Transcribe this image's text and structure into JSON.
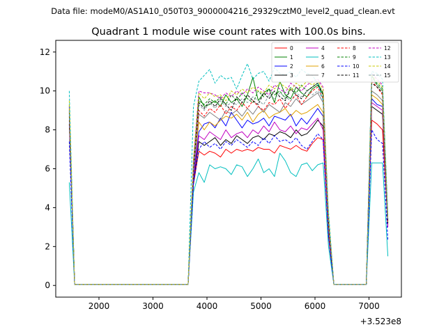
{
  "figure": {
    "suptitle": "Data file: modeM0/AS1A10_050T03_9000004216_29329cztM0_level2_quad_clean.evt"
  },
  "chart_data": {
    "type": "line",
    "title": "Quadrant 1 module wise count rates with 100.0s bins.",
    "xlabel": "",
    "ylabel": "",
    "x_offset_label": "+3.523e8",
    "xlim": [
      1200,
      7600
    ],
    "ylim": [
      -0.6,
      12.6
    ],
    "x_ticks": [
      2000,
      3000,
      4000,
      5000,
      6000,
      7000
    ],
    "y_ticks": [
      0,
      2,
      4,
      6,
      8,
      10,
      12
    ],
    "grid": false,
    "legend_placement": "top-right",
    "legend_columns": 4,
    "x": [
      1450,
      1550,
      1650,
      3650,
      3750,
      3850,
      3950,
      4050,
      4150,
      4250,
      4350,
      4450,
      4550,
      4650,
      4750,
      4850,
      4950,
      5050,
      5150,
      5250,
      5350,
      5450,
      5550,
      5650,
      5750,
      5850,
      5950,
      6050,
      6150,
      6250,
      6350,
      6950,
      7050,
      7150,
      7250,
      7350
    ],
    "series": [
      {
        "name": "0",
        "color": "#ff0000",
        "dash": "solid",
        "values": [
          9.0,
          0.05,
          0.05,
          0.05,
          5.2,
          6.9,
          6.7,
          6.9,
          6.8,
          6.6,
          7.0,
          6.8,
          7.0,
          6.9,
          7.0,
          6.9,
          7.1,
          7.0,
          7.0,
          6.8,
          7.2,
          7.1,
          7.0,
          7.2,
          7.0,
          6.9,
          7.3,
          7.6,
          7.5,
          2.5,
          0.05,
          0.05,
          8.5,
          8.3,
          8.0,
          3.2
        ]
      },
      {
        "name": "1",
        "color": "#008000",
        "dash": "solid",
        "values": [
          9.2,
          0.05,
          0.05,
          0.05,
          6.2,
          9.7,
          9.2,
          9.3,
          9.5,
          9.2,
          9.8,
          9.4,
          9.6,
          9.2,
          9.8,
          10.7,
          9.5,
          9.9,
          10.1,
          9.4,
          10.5,
          9.8,
          9.6,
          10.2,
          9.9,
          9.7,
          10.1,
          10.3,
          9.8,
          3.5,
          0.05,
          0.05,
          10.8,
          10.3,
          10.0,
          3.4
        ]
      },
      {
        "name": "2",
        "color": "#0000ff",
        "dash": "solid",
        "values": [
          8.7,
          0.05,
          0.05,
          0.05,
          5.7,
          7.9,
          8.3,
          8.4,
          8.1,
          8.6,
          8.2,
          8.9,
          8.5,
          8.1,
          8.5,
          8.3,
          8.4,
          8.6,
          8.2,
          8.7,
          8.6,
          8.5,
          8.8,
          8.2,
          8.6,
          8.3,
          8.7,
          9.1,
          8.7,
          2.9,
          0.05,
          0.05,
          9.6,
          9.3,
          9.2,
          3.1
        ]
      },
      {
        "name": "3",
        "color": "#000000",
        "dash": "solid",
        "values": [
          8.3,
          0.05,
          0.05,
          0.05,
          5.3,
          7.4,
          7.2,
          7.4,
          7.6,
          7.2,
          7.5,
          7.3,
          7.7,
          7.5,
          7.3,
          7.6,
          7.7,
          7.5,
          7.8,
          7.7,
          7.9,
          7.8,
          7.6,
          8.0,
          7.7,
          7.8,
          8.1,
          8.5,
          8.2,
          2.7,
          0.05,
          0.05,
          9.2,
          9.0,
          8.8,
          3.0
        ]
      },
      {
        "name": "4",
        "color": "#c000c0",
        "dash": "solid",
        "values": [
          8.5,
          0.05,
          0.05,
          0.05,
          5.5,
          7.7,
          7.5,
          7.9,
          7.7,
          7.5,
          8.0,
          7.6,
          7.8,
          7.9,
          7.6,
          8.0,
          7.8,
          8.2,
          7.9,
          8.4,
          8.0,
          7.9,
          8.2,
          7.8,
          8.1,
          8.0,
          8.3,
          8.6,
          8.0,
          2.8,
          0.05,
          0.05,
          9.4,
          9.2,
          9.0,
          3.0
        ]
      },
      {
        "name": "5",
        "color": "#00bfbf",
        "dash": "solid",
        "values": [
          5.3,
          0.05,
          0.05,
          0.05,
          4.8,
          5.8,
          5.3,
          6.2,
          6.0,
          6.1,
          6.0,
          5.7,
          6.2,
          6.1,
          5.6,
          6.0,
          6.5,
          5.8,
          6.0,
          5.6,
          6.8,
          6.4,
          5.8,
          5.6,
          6.2,
          6.3,
          5.9,
          6.2,
          6.3,
          2.0,
          0.05,
          0.05,
          6.3,
          6.3,
          6.3,
          1.5
        ]
      },
      {
        "name": "6",
        "color": "#e0a000",
        "dash": "solid",
        "values": [
          9.0,
          0.05,
          0.05,
          0.05,
          5.9,
          8.4,
          8.0,
          8.4,
          8.2,
          8.5,
          8.7,
          8.6,
          8.8,
          8.5,
          8.9,
          8.4,
          8.8,
          9.0,
          8.6,
          8.8,
          8.9,
          9.1,
          8.7,
          9.0,
          8.8,
          8.9,
          9.1,
          9.3,
          8.9,
          3.0,
          0.05,
          0.05,
          9.8,
          9.6,
          9.3,
          3.2
        ]
      },
      {
        "name": "7",
        "color": "#808080",
        "dash": "solid",
        "values": [
          8.8,
          0.05,
          0.05,
          0.05,
          5.8,
          8.8,
          8.6,
          8.9,
          8.7,
          8.5,
          9.0,
          8.8,
          9.0,
          8.7,
          9.1,
          8.8,
          9.2,
          8.9,
          9.3,
          9.1,
          8.9,
          9.4,
          9.2,
          9.6,
          9.3,
          9.5,
          9.7,
          9.9,
          9.4,
          3.1,
          0.05,
          0.05,
          10.0,
          9.8,
          9.5,
          3.3
        ]
      },
      {
        "name": "8",
        "color": "#ff0000",
        "dash": "dashed",
        "values": [
          9.1,
          0.05,
          0.05,
          0.05,
          6.0,
          9.0,
          8.7,
          9.1,
          8.9,
          9.3,
          8.8,
          9.2,
          9.0,
          9.4,
          9.1,
          9.5,
          9.2,
          9.0,
          9.4,
          9.3,
          9.6,
          9.1,
          9.5,
          9.8,
          9.3,
          9.7,
          10.0,
          10.2,
          9.6,
          3.2,
          0.05,
          0.05,
          10.5,
          10.2,
          9.8,
          3.3
        ]
      },
      {
        "name": "9",
        "color": "#008000",
        "dash": "dashed",
        "values": [
          9.3,
          0.05,
          0.05,
          0.05,
          6.3,
          9.5,
          9.3,
          9.6,
          9.4,
          9.7,
          9.3,
          9.8,
          9.5,
          9.9,
          9.6,
          9.4,
          10.0,
          9.7,
          10.1,
          9.8,
          10.0,
          9.6,
          10.2,
          9.9,
          10.3,
          10.0,
          10.2,
          10.4,
          9.9,
          3.4,
          0.05,
          0.05,
          10.7,
          10.4,
          10.1,
          3.4
        ]
      },
      {
        "name": "10",
        "color": "#0000ff",
        "dash": "dashed",
        "values": [
          7.4,
          0.05,
          0.05,
          0.05,
          5.2,
          7.0,
          7.4,
          7.1,
          7.3,
          7.0,
          7.4,
          7.2,
          7.5,
          7.3,
          7.1,
          7.4,
          7.2,
          7.6,
          7.3,
          7.7,
          7.4,
          7.5,
          7.3,
          7.6,
          7.2,
          7.0,
          7.4,
          7.8,
          7.5,
          2.5,
          0.05,
          0.05,
          8.0,
          7.5,
          7.3,
          2.3
        ]
      },
      {
        "name": "11",
        "color": "#000000",
        "dash": "dashed",
        "values": [
          8.9,
          0.05,
          0.05,
          0.05,
          6.0,
          9.4,
          9.1,
          9.5,
          9.2,
          9.6,
          9.3,
          9.0,
          9.7,
          9.4,
          9.8,
          9.5,
          9.3,
          9.9,
          9.6,
          10.0,
          9.7,
          9.5,
          10.1,
          9.8,
          9.6,
          10.0,
          10.2,
          10.4,
          9.8,
          3.3,
          0.05,
          0.05,
          10.4,
          10.2,
          9.9,
          3.2
        ]
      },
      {
        "name": "12",
        "color": "#c000c0",
        "dash": "dashed",
        "values": [
          9.2,
          0.05,
          0.05,
          0.05,
          6.4,
          10.0,
          9.9,
          9.9,
          9.8,
          9.6,
          9.9,
          9.7,
          10.0,
          9.8,
          10.1,
          9.9,
          10.2,
          10.0,
          9.8,
          10.3,
          10.1,
          9.9,
          10.4,
          10.2,
          10.0,
          10.3,
          10.5,
          10.6,
          10.2,
          3.5,
          0.05,
          0.05,
          10.9,
          10.6,
          10.3,
          3.5
        ]
      },
      {
        "name": "13",
        "color": "#00bfbf",
        "dash": "dashed",
        "values": [
          10.0,
          0.05,
          0.05,
          0.05,
          9.2,
          10.5,
          10.8,
          11.1,
          10.4,
          10.8,
          10.6,
          10.7,
          10.1,
          10.8,
          11.4,
          10.6,
          10.9,
          11.0,
          10.5,
          11.2,
          10.9,
          10.8,
          11.0,
          10.7,
          11.1,
          10.9,
          10.8,
          10.4,
          9.5,
          3.8,
          0.05,
          0.05,
          11.0,
          10.9,
          10.6,
          3.6
        ]
      },
      {
        "name": "14",
        "color": "#c8c800",
        "dash": "dashed",
        "values": [
          9.5,
          0.05,
          0.05,
          0.05,
          6.5,
          9.9,
          9.6,
          9.9,
          9.7,
          9.8,
          9.5,
          10.0,
          9.8,
          10.1,
          9.9,
          10.2,
          10.0,
          9.9,
          10.3,
          10.1,
          10.4,
          10.2,
          10.0,
          10.4,
          10.2,
          10.5,
          10.3,
          10.5,
          10.1,
          3.6,
          0.05,
          0.05,
          10.8,
          10.5,
          10.2,
          3.5
        ]
      },
      {
        "name": "15",
        "color": "#80a0a0",
        "dash": "dashed",
        "values": [
          9.0,
          0.05,
          0.05,
          0.05,
          6.1,
          9.3,
          9.0,
          9.4,
          9.1,
          9.5,
          9.2,
          9.4,
          9.3,
          9.6,
          9.4,
          9.7,
          9.5,
          9.3,
          9.8,
          9.6,
          9.9,
          9.7,
          9.5,
          9.9,
          9.7,
          10.0,
          9.8,
          10.0,
          9.6,
          3.4,
          0.05,
          0.05,
          10.6,
          10.3,
          10.0,
          3.4
        ]
      }
    ]
  }
}
